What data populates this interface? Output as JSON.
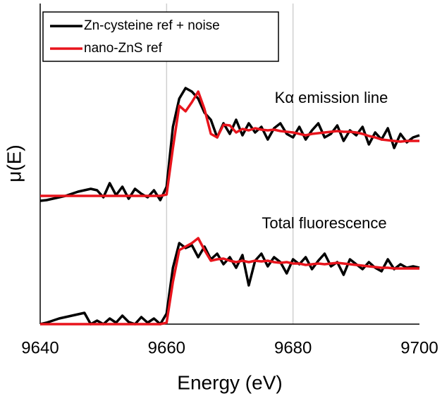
{
  "chart_data": {
    "type": "line",
    "xlabel": "Energy (eV)",
    "ylabel": "μ(E)",
    "xlim": [
      9640,
      9700
    ],
    "xticks": [
      9640,
      9660,
      9680,
      9700
    ],
    "ylim": [
      0,
      455
    ],
    "grid": true,
    "legend_position": "upper left",
    "legend": [
      {
        "name": "Zn-cysteine ref + noise",
        "color": "#000000"
      },
      {
        "name": "nano-ZnS ref",
        "color": "#e8141c"
      }
    ],
    "x": [
      9640,
      9641,
      9642,
      9643,
      9644,
      9645,
      9646,
      9647,
      9648,
      9649,
      9650,
      9651,
      9652,
      9653,
      9654,
      9655,
      9656,
      9657,
      9658,
      9659,
      9660,
      9661,
      9662,
      9663,
      9664,
      9665,
      9666,
      9667,
      9668,
      9669,
      9670,
      9671,
      9672,
      9673,
      9674,
      9675,
      9676,
      9677,
      9678,
      9679,
      9680,
      9681,
      9682,
      9683,
      9684,
      9685,
      9686,
      9687,
      9688,
      9689,
      9690,
      9691,
      9692,
      9693,
      9694,
      9695,
      9696,
      9697,
      9698,
      9699,
      9700
    ],
    "panels": [
      {
        "annotation": "Kα emission line",
        "series": [
          {
            "values": [
              175,
              176,
              178,
              180,
              182,
              185,
              188,
              190,
              192,
              190,
              180,
              200,
              183,
              195,
              178,
              192,
              185,
              180,
              190,
              176,
              195,
              280,
              320,
              335,
              330,
              320,
              300,
              290,
              265,
              285,
              270,
              290,
              268,
              285,
              272,
              280,
              262,
              278,
              285,
              270,
              265,
              280,
              262,
              275,
              285,
              265,
              270,
              282,
              260,
              275,
              268,
              280,
              255,
              272,
              262,
              278,
              250,
              270,
              258,
              265,
              268
            ]
          },
          {
            "values": [
              182,
              182,
              182,
              182,
              182,
              182,
              182,
              182,
              182,
              182,
              182,
              182,
              182,
              182,
              182,
              182,
              182,
              182,
              182,
              182,
              184,
              250,
              310,
              302,
              315,
              330,
              305,
              270,
              265,
              283,
              282,
              272,
              277,
              275,
              278,
              276,
              275,
              276,
              274,
              273,
              272,
              270,
              268,
              270,
              271,
              272,
              273,
              274,
              273,
              273,
              272,
              270,
              267,
              265,
              262,
              261,
              260,
              259,
              260,
              260,
              260
            ]
          }
        ]
      },
      {
        "annotation": "Total fluorescence",
        "series": [
          {
            "values": [
              0,
              2,
              5,
              8,
              10,
              12,
              14,
              16,
              0,
              5,
              0,
              8,
              2,
              12,
              3,
              0,
              10,
              2,
              8,
              0,
              15,
              80,
              115,
              108,
              112,
              95,
              110,
              92,
              100,
              85,
              95,
              80,
              98,
              55,
              90,
              100,
              82,
              95,
              88,
              72,
              92,
              85,
              95,
              78,
              90,
              100,
              82,
              88,
              70,
              92,
              85,
              78,
              88,
              80,
              75,
              92,
              78,
              85,
              80,
              82,
              80
            ]
          },
          {
            "values": [
              0,
              0,
              0,
              0,
              0,
              0,
              0,
              0,
              0,
              0,
              0,
              0,
              0,
              0,
              0,
              0,
              0,
              0,
              0,
              0,
              2,
              60,
              105,
              110,
              115,
              122,
              105,
              90,
              92,
              93,
              90,
              88,
              90,
              88,
              90,
              89,
              90,
              88,
              87,
              88,
              86,
              86,
              84,
              85,
              86,
              85,
              86,
              87,
              86,
              85,
              84,
              83,
              82,
              81,
              80,
              80,
              79,
              79,
              79,
              79,
              79
            ]
          }
        ]
      }
    ]
  }
}
